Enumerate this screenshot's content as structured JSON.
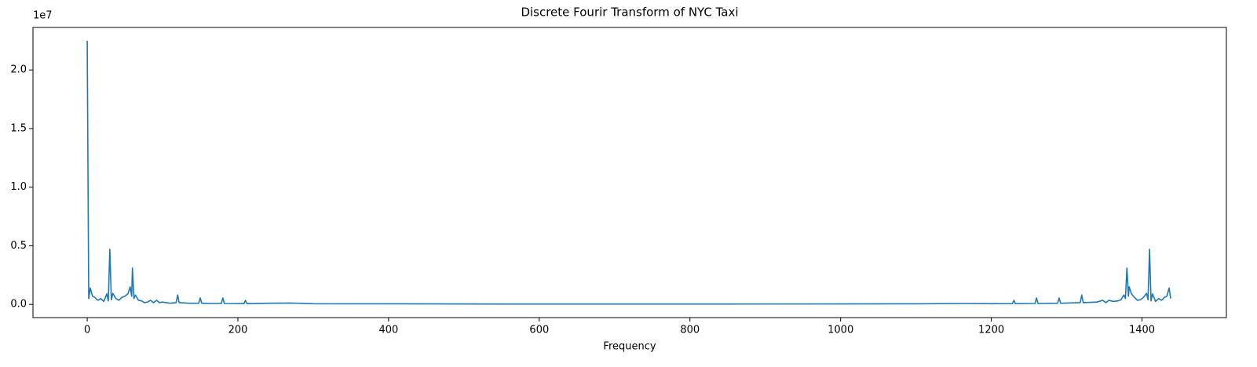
{
  "chart_data": {
    "type": "line",
    "title": "Discrete Fourir Transform of NYC Taxi",
    "xlabel": "Frequency",
    "y_offset_label": "1e7",
    "color": "#1f77b4",
    "x": [
      0,
      2,
      4,
      7,
      10,
      14,
      18,
      22,
      26,
      28,
      30,
      32,
      34,
      38,
      42,
      46,
      50,
      54,
      57,
      59,
      60,
      62,
      64,
      68,
      72,
      76,
      80,
      84,
      88,
      92,
      96,
      100,
      110,
      118,
      120,
      122,
      135,
      148,
      150,
      152,
      165,
      178,
      180,
      182,
      208,
      210,
      212,
      240,
      270,
      300,
      400,
      600,
      720,
      840,
      1000,
      1100,
      1170,
      1200,
      1228,
      1230,
      1232,
      1258,
      1260,
      1262,
      1288,
      1290,
      1292,
      1318,
      1320,
      1322,
      1340,
      1348,
      1352,
      1356,
      1362,
      1368,
      1372,
      1376,
      1378,
      1380,
      1382,
      1383,
      1386,
      1390,
      1394,
      1398,
      1402,
      1406,
      1408,
      1410,
      1412,
      1414,
      1418,
      1422,
      1426,
      1430,
      1433,
      1436,
      1438
    ],
    "values": [
      22500000,
      500000,
      1400000,
      700000,
      600000,
      350000,
      500000,
      250000,
      900000,
      300000,
      4700000,
      400000,
      950000,
      500000,
      350000,
      600000,
      700000,
      900000,
      1500000,
      700000,
      3100000,
      500000,
      800000,
      350000,
      300000,
      150000,
      200000,
      350000,
      150000,
      350000,
      150000,
      200000,
      100000,
      150000,
      800000,
      150000,
      100000,
      100000,
      550000,
      100000,
      80000,
      80000,
      550000,
      80000,
      70000,
      350000,
      70000,
      100000,
      120000,
      60000,
      50000,
      30000,
      30000,
      30000,
      40000,
      50000,
      80000,
      60000,
      70000,
      350000,
      70000,
      80000,
      550000,
      80000,
      100000,
      550000,
      100000,
      150000,
      800000,
      150000,
      200000,
      350000,
      150000,
      350000,
      250000,
      300000,
      400000,
      800000,
      500000,
      3100000,
      700000,
      1500000,
      900000,
      600000,
      350000,
      400000,
      600000,
      950000,
      400000,
      4700000,
      300000,
      900000,
      250000,
      500000,
      350000,
      600000,
      700000,
      1400000,
      500000
    ],
    "xlim": [
      -72,
      1512
    ],
    "xticks": [
      0,
      200,
      400,
      600,
      800,
      1000,
      1200,
      1400
    ],
    "ylim": [
      -1125000,
      23625000
    ],
    "yticks": [
      {
        "value": 0,
        "label": "0.0"
      },
      {
        "value": 5000000,
        "label": "0.5"
      },
      {
        "value": 10000000,
        "label": "1.0"
      },
      {
        "value": 15000000,
        "label": "1.5"
      },
      {
        "value": 20000000,
        "label": "2.0"
      }
    ]
  }
}
